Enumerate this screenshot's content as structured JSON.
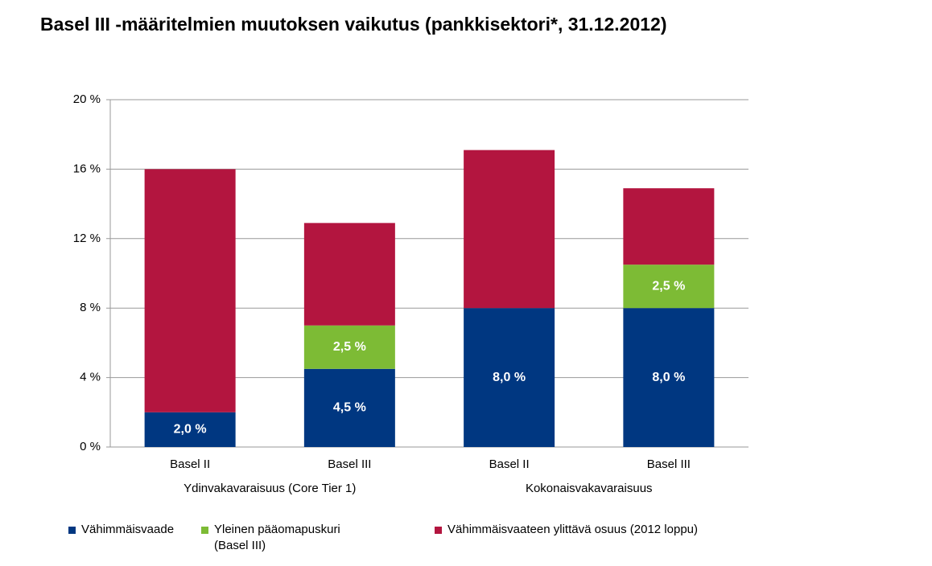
{
  "chart_data": {
    "type": "stacked-bar",
    "title": "Basel III -määritelmien muutoksen vaikutus (pankkisektori*, 31.12.2012)",
    "groups": [
      {
        "name": "Ydinvakavaraisuus (Core Tier 1)",
        "categories": [
          "Basel II",
          "Basel III"
        ]
      },
      {
        "name": "Kokonaisvakavaraisuus",
        "categories": [
          "Basel II",
          "Basel III"
        ]
      }
    ],
    "series": [
      {
        "name": "Vähimmäisvaade",
        "color": "#003781",
        "values": [
          2.0,
          4.5,
          8.0,
          8.0
        ],
        "value_labels": [
          "2,0 %",
          "4,5 %",
          "8,0 %",
          "8,0 %"
        ]
      },
      {
        "name": "Yleinen pääomapuskuri (Basel III)",
        "color": "#7dbb35",
        "values": [
          null,
          2.5,
          null,
          2.5
        ],
        "value_labels": [
          null,
          "2,5 %",
          null,
          "2,5 %"
        ]
      },
      {
        "name": "Vähimmäisvaateen ylittävä osuus (2012 loppu)",
        "color": "#b3153f",
        "values": [
          14.0,
          5.9,
          9.1,
          4.4
        ]
      }
    ],
    "ylim": [
      0,
      20
    ],
    "yticks": [
      {
        "value": 0,
        "label": "0 %"
      },
      {
        "value": 4,
        "label": "4 %"
      },
      {
        "value": 8,
        "label": "8 %"
      },
      {
        "value": 12,
        "label": "12 %"
      },
      {
        "value": 16,
        "label": "16 %"
      },
      {
        "value": 20,
        "label": "20 %"
      }
    ],
    "grid": true
  }
}
